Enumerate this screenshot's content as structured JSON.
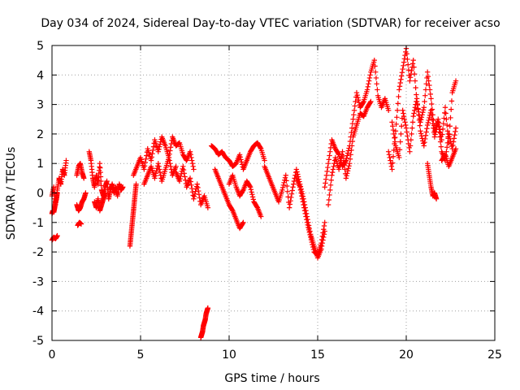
{
  "chart_data": {
    "type": "scatter",
    "title": "Day 034 of 2024, Sidereal Day-to-day VTEC variation (SDTVAR) for receiver acso",
    "xlabel": "GPS time / hours",
    "ylabel": "SDTVAR / TECUs",
    "xlim": [
      0,
      25
    ],
    "ylim": [
      -5,
      5
    ],
    "xticks": [
      0,
      5,
      10,
      15,
      20,
      25
    ],
    "yticks": [
      -5,
      -4,
      -3,
      -2,
      -1,
      0,
      1,
      2,
      3,
      4,
      5
    ],
    "grid": true,
    "marker": "plus",
    "color": "#ff0000",
    "segments": [
      {
        "x": [
          0.0,
          0.1,
          0.2,
          0.3,
          0.4,
          0.5,
          0.6,
          0.7,
          0.8
        ],
        "y": [
          -0.1,
          0.2,
          -0.4,
          0.1,
          0.5,
          0.3,
          0.8,
          0.6,
          1.1
        ]
      },
      {
        "x": [
          0.0,
          0.05,
          0.1,
          0.15,
          0.2,
          0.25,
          0.3
        ],
        "y": [
          -0.7,
          -0.6,
          -0.65,
          -0.5,
          -0.3,
          -0.2,
          0.0
        ]
      },
      {
        "x": [
          0.0,
          0.1,
          0.2,
          0.3
        ],
        "y": [
          -1.6,
          -1.5,
          -1.55,
          -1.45
        ]
      },
      {
        "x": [
          1.4,
          1.5,
          1.6,
          1.7,
          1.8
        ],
        "y": [
          0.6,
          0.9,
          1.0,
          0.7,
          0.5
        ]
      },
      {
        "x": [
          1.4,
          1.5,
          1.6,
          1.7,
          1.8,
          1.9
        ],
        "y": [
          -0.4,
          -0.6,
          -0.5,
          -0.3,
          -0.2,
          0.0
        ]
      },
      {
        "x": [
          1.45,
          1.55,
          1.65
        ],
        "y": [
          -1.1,
          -1.0,
          -1.05
        ]
      },
      {
        "x": [
          2.1,
          2.2,
          2.3,
          2.4,
          2.5,
          2.6,
          2.7,
          2.8,
          2.9,
          3.0,
          3.1,
          3.2,
          3.3,
          3.4,
          3.5,
          3.6,
          3.7,
          3.8,
          3.9,
          4.0
        ],
        "y": [
          1.4,
          1.1,
          0.5,
          0.2,
          0.6,
          0.3,
          1.0,
          0.1,
          -0.1,
          0.2,
          0.4,
          -0.2,
          0.1,
          0.3,
          0.0,
          0.2,
          -0.1,
          0.3,
          0.1,
          0.2
        ]
      },
      {
        "x": [
          2.4,
          2.5,
          2.6,
          2.7,
          2.8,
          2.9,
          3.0
        ],
        "y": [
          -0.3,
          -0.5,
          -0.2,
          -0.6,
          -0.4,
          -0.2,
          0.0
        ]
      },
      {
        "x": [
          4.4,
          4.45,
          4.5,
          4.55,
          4.6,
          4.65,
          4.7,
          4.75
        ],
        "y": [
          -1.8,
          -1.5,
          -1.2,
          -0.9,
          -0.6,
          -0.3,
          0.0,
          0.3
        ]
      },
      {
        "x": [
          4.6,
          4.8,
          5.0,
          5.2,
          5.4,
          5.6,
          5.8,
          6.0,
          6.2,
          6.4,
          6.6,
          6.8,
          7.0,
          7.2,
          7.4,
          7.6,
          7.8,
          8.0
        ],
        "y": [
          0.6,
          0.9,
          1.2,
          0.8,
          1.5,
          1.1,
          1.8,
          1.4,
          1.9,
          1.6,
          1.2,
          1.9,
          1.6,
          1.7,
          1.3,
          1.1,
          1.4,
          0.8
        ]
      },
      {
        "x": [
          5.2,
          5.4,
          5.6,
          5.8,
          6.0,
          6.2,
          6.4,
          6.6,
          6.8,
          7.0
        ],
        "y": [
          0.3,
          0.6,
          0.9,
          0.5,
          1.0,
          0.4,
          0.8,
          1.2,
          0.6,
          0.9
        ]
      },
      {
        "x": [
          7.0,
          7.2,
          7.4,
          7.6,
          7.8,
          8.0,
          8.2,
          8.4,
          8.6,
          8.8
        ],
        "y": [
          0.7,
          0.4,
          0.9,
          0.2,
          0.5,
          -0.2,
          0.3,
          -0.4,
          -0.1,
          -0.5
        ]
      },
      {
        "x": [
          8.4,
          8.45,
          8.5,
          8.55,
          8.6,
          8.65,
          8.7,
          8.75,
          8.8
        ],
        "y": [
          -4.9,
          -4.8,
          -4.7,
          -4.5,
          -4.4,
          -4.3,
          -4.1,
          -4.0,
          -3.9
        ]
      },
      {
        "x": [
          9.0,
          9.2,
          9.4,
          9.6,
          9.8,
          10.0,
          10.2,
          10.4,
          10.6,
          10.8,
          11.0,
          11.2,
          11.4,
          11.6,
          11.8,
          12.0
        ],
        "y": [
          1.6,
          1.5,
          1.3,
          1.4,
          1.2,
          1.1,
          0.9,
          1.0,
          1.3,
          0.8,
          1.1,
          1.4,
          1.6,
          1.7,
          1.5,
          1.1
        ]
      },
      {
        "x": [
          9.2,
          9.4,
          9.6,
          9.8,
          10.0,
          10.2,
          10.4,
          10.6,
          10.8
        ],
        "y": [
          0.8,
          0.5,
          0.2,
          -0.1,
          -0.4,
          -0.6,
          -0.9,
          -1.2,
          -1.0
        ]
      },
      {
        "x": [
          10.0,
          10.2,
          10.4,
          10.6,
          10.8,
          11.0,
          11.2,
          11.4,
          11.6,
          11.8
        ],
        "y": [
          0.3,
          0.6,
          0.2,
          -0.1,
          0.1,
          0.4,
          0.2,
          -0.3,
          -0.5,
          -0.8
        ]
      },
      {
        "x": [
          12.0,
          12.2,
          12.4,
          12.6,
          12.8,
          13.0,
          13.2,
          13.4,
          13.6,
          13.8,
          14.0,
          14.2,
          14.4,
          14.6,
          14.8,
          15.0,
          15.2,
          15.4
        ],
        "y": [
          0.9,
          0.6,
          0.3,
          0.0,
          -0.3,
          0.1,
          0.6,
          -0.5,
          0.2,
          0.8,
          0.3,
          -0.2,
          -0.8,
          -1.4,
          -1.8,
          -2.2,
          -1.9,
          -1.3
        ]
      },
      {
        "x": [
          13.8,
          14.0,
          14.2,
          14.4,
          14.6,
          14.8,
          15.0,
          15.2,
          15.4
        ],
        "y": [
          0.5,
          0.2,
          -0.4,
          -1.0,
          -1.5,
          -2.0,
          -2.1,
          -1.7,
          -1.0
        ]
      },
      {
        "x": [
          15.4,
          15.6,
          15.8,
          16.0,
          16.2,
          16.4,
          16.6,
          16.8,
          17.0,
          17.2,
          17.4,
          17.6,
          17.8,
          18.0,
          18.2,
          18.4,
          18.6,
          18.8,
          19.0
        ],
        "y": [
          0.2,
          1.0,
          1.8,
          1.5,
          1.3,
          0.9,
          1.1,
          1.6,
          2.5,
          3.4,
          2.9,
          3.1,
          3.5,
          4.1,
          4.5,
          3.3,
          2.9,
          3.2,
          2.8
        ]
      },
      {
        "x": [
          15.6,
          15.8,
          16.0,
          16.2,
          16.4,
          16.6,
          16.8,
          17.0,
          17.2,
          17.4,
          17.6,
          17.8,
          18.0
        ],
        "y": [
          -0.4,
          0.6,
          1.2,
          0.8,
          1.4,
          0.5,
          1.0,
          1.9,
          2.3,
          2.7,
          2.6,
          2.9,
          3.1
        ]
      },
      {
        "x": [
          19.0,
          19.2,
          19.4,
          19.6,
          19.8,
          20.0,
          20.2,
          20.4,
          20.6,
          20.8,
          21.0,
          21.2,
          21.4,
          21.6,
          21.8,
          22.0,
          22.2,
          22.4,
          22.6,
          22.8
        ],
        "y": [
          1.4,
          0.8,
          2.1,
          3.5,
          4.2,
          4.9,
          3.8,
          4.5,
          3.1,
          2.4,
          2.9,
          4.1,
          3.2,
          2.1,
          2.5,
          1.8,
          2.9,
          1.7,
          3.4,
          3.8
        ]
      },
      {
        "x": [
          19.2,
          19.4,
          19.6,
          19.8,
          20.0,
          20.2,
          20.4,
          20.6,
          20.8,
          21.0,
          21.2,
          21.4,
          21.6,
          21.8,
          22.0,
          22.2,
          22.4,
          22.6,
          22.8
        ],
        "y": [
          2.4,
          1.6,
          1.2,
          2.8,
          2.2,
          1.4,
          2.6,
          3.2,
          2.1,
          1.6,
          2.3,
          2.8,
          1.9,
          2.4,
          1.4,
          1.1,
          2.0,
          1.5,
          2.2
        ]
      },
      {
        "x": [
          21.2,
          21.3,
          21.4,
          21.5,
          21.6,
          21.7
        ],
        "y": [
          1.0,
          0.6,
          0.2,
          -0.1,
          0.0,
          -0.2
        ]
      },
      {
        "x": [
          22.0,
          22.2,
          22.4,
          22.6,
          22.8
        ],
        "y": [
          1.1,
          1.3,
          0.9,
          1.2,
          1.5
        ]
      }
    ]
  }
}
